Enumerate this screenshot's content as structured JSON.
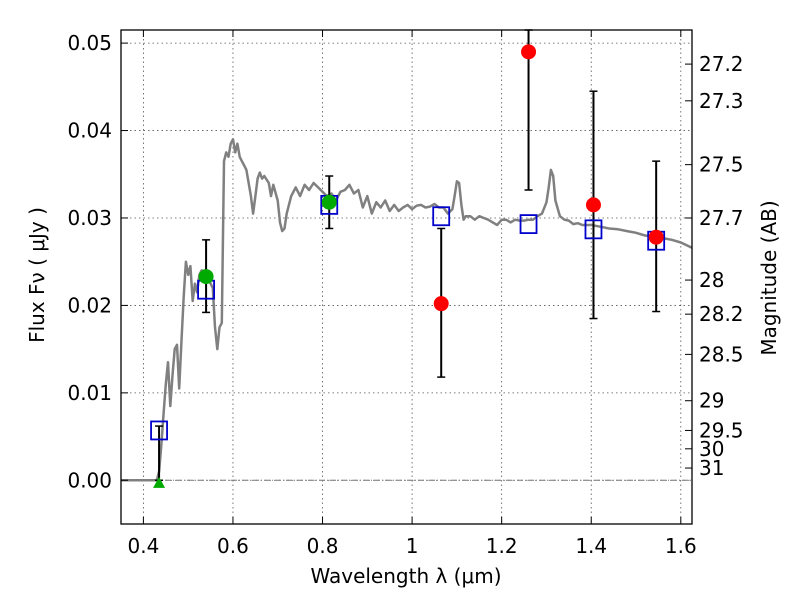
{
  "chart_data": {
    "type": "scatter",
    "title": "",
    "xlabel": "Wavelength  λ (μm)",
    "ylabel": "Flux  Fν  ( μJy )",
    "y2label": "Magnitude (AB)",
    "xlim": [
      0.35,
      1.625
    ],
    "ylim": [
      -0.005,
      0.0515
    ],
    "grid": true,
    "x_ticks": [
      0.4,
      0.6,
      0.8,
      1.0,
      1.2,
      1.4,
      1.6
    ],
    "x_tick_labels": [
      "0.4",
      "0.6",
      "0.8",
      "1",
      "1.2",
      "1.4",
      "1.6"
    ],
    "y_ticks": [
      0.0,
      0.01,
      0.02,
      0.03,
      0.04,
      0.05
    ],
    "y_tick_labels": [
      "0.00",
      "0.01",
      "0.02",
      "0.03",
      "0.04",
      "0.05"
    ],
    "right_axis_ticks": [
      {
        "label": "27.2",
        "flux": 0.0476
      },
      {
        "label": "27.3",
        "flux": 0.0434
      },
      {
        "label": "27.5",
        "flux": 0.0361
      },
      {
        "label": "27.7",
        "flux": 0.03
      },
      {
        "label": "28",
        "flux": 0.0229
      },
      {
        "label": "28.2",
        "flux": 0.019
      },
      {
        "label": "28.5",
        "flux": 0.0144
      },
      {
        "label": "29",
        "flux": 0.0091
      },
      {
        "label": "29.5",
        "flux": 0.0057
      },
      {
        "label": "30",
        "flux": 0.0036
      },
      {
        "label": "31",
        "flux": 0.0014
      }
    ],
    "series": [
      {
        "kind": "line",
        "color": "#808080",
        "points": [
          [
            0.35,
            0.0
          ],
          [
            0.43,
            0.0
          ],
          [
            0.435,
            0.001
          ],
          [
            0.44,
            0.004
          ],
          [
            0.445,
            0.0075
          ],
          [
            0.45,
            0.011
          ],
          [
            0.455,
            0.0135
          ],
          [
            0.46,
            0.0085
          ],
          [
            0.465,
            0.012
          ],
          [
            0.47,
            0.015
          ],
          [
            0.475,
            0.0155
          ],
          [
            0.48,
            0.0105
          ],
          [
            0.485,
            0.016
          ],
          [
            0.49,
            0.021
          ],
          [
            0.495,
            0.025
          ],
          [
            0.5,
            0.0235
          ],
          [
            0.505,
            0.0245
          ],
          [
            0.51,
            0.0205
          ],
          [
            0.515,
            0.0225
          ],
          [
            0.52,
            0.0215
          ],
          [
            0.525,
            0.0235
          ],
          [
            0.53,
            0.024
          ],
          [
            0.54,
            0.0238
          ],
          [
            0.55,
            0.0225
          ],
          [
            0.555,
            0.022
          ],
          [
            0.56,
            0.0175
          ],
          [
            0.565,
            0.015
          ],
          [
            0.57,
            0.0175
          ],
          [
            0.575,
            0.018
          ],
          [
            0.58,
            0.0365
          ],
          [
            0.585,
            0.0375
          ],
          [
            0.59,
            0.037
          ],
          [
            0.595,
            0.0385
          ],
          [
            0.6,
            0.039
          ],
          [
            0.605,
            0.0375
          ],
          [
            0.61,
            0.0385
          ],
          [
            0.615,
            0.037
          ],
          [
            0.62,
            0.0365
          ],
          [
            0.625,
            0.036
          ],
          [
            0.63,
            0.0355
          ],
          [
            0.64,
            0.0325
          ],
          [
            0.645,
            0.0305
          ],
          [
            0.65,
            0.0325
          ],
          [
            0.655,
            0.0345
          ],
          [
            0.66,
            0.0352
          ],
          [
            0.665,
            0.0345
          ],
          [
            0.67,
            0.0348
          ],
          [
            0.68,
            0.034
          ],
          [
            0.685,
            0.0325
          ],
          [
            0.69,
            0.0338
          ],
          [
            0.7,
            0.032
          ],
          [
            0.705,
            0.0295
          ],
          [
            0.71,
            0.0285
          ],
          [
            0.715,
            0.0288
          ],
          [
            0.72,
            0.0305
          ],
          [
            0.73,
            0.0325
          ],
          [
            0.74,
            0.0335
          ],
          [
            0.75,
            0.0325
          ],
          [
            0.76,
            0.0338
          ],
          [
            0.77,
            0.0332
          ],
          [
            0.78,
            0.034
          ],
          [
            0.79,
            0.0335
          ],
          [
            0.8,
            0.033
          ],
          [
            0.81,
            0.0325
          ],
          [
            0.82,
            0.0328
          ],
          [
            0.83,
            0.032
          ],
          [
            0.84,
            0.033
          ],
          [
            0.85,
            0.0332
          ],
          [
            0.86,
            0.0338
          ],
          [
            0.87,
            0.0328
          ],
          [
            0.88,
            0.0332
          ],
          [
            0.89,
            0.0312
          ],
          [
            0.9,
            0.0325
          ],
          [
            0.91,
            0.0305
          ],
          [
            0.92,
            0.0318
          ],
          [
            0.93,
            0.0312
          ],
          [
            0.94,
            0.032
          ],
          [
            0.95,
            0.0308
          ],
          [
            0.96,
            0.0315
          ],
          [
            0.97,
            0.0308
          ],
          [
            0.98,
            0.0312
          ],
          [
            0.99,
            0.0315
          ],
          [
            1.0,
            0.031
          ],
          [
            1.01,
            0.0314
          ],
          [
            1.02,
            0.0315
          ],
          [
            1.03,
            0.0312
          ],
          [
            1.04,
            0.0313
          ],
          [
            1.05,
            0.0316
          ],
          [
            1.06,
            0.0312
          ],
          [
            1.07,
            0.0312
          ],
          [
            1.08,
            0.0305
          ],
          [
            1.09,
            0.031
          ],
          [
            1.095,
            0.0325
          ],
          [
            1.1,
            0.0342
          ],
          [
            1.105,
            0.034
          ],
          [
            1.11,
            0.0315
          ],
          [
            1.115,
            0.0298
          ],
          [
            1.12,
            0.0302
          ],
          [
            1.13,
            0.0302
          ],
          [
            1.14,
            0.0298
          ],
          [
            1.15,
            0.0302
          ],
          [
            1.16,
            0.03
          ],
          [
            1.17,
            0.0298
          ],
          [
            1.18,
            0.0295
          ],
          [
            1.19,
            0.0292
          ],
          [
            1.2,
            0.0298
          ],
          [
            1.21,
            0.0298
          ],
          [
            1.22,
            0.0295
          ],
          [
            1.23,
            0.0298
          ],
          [
            1.24,
            0.0297
          ],
          [
            1.25,
            0.0297
          ],
          [
            1.26,
            0.0298
          ],
          [
            1.27,
            0.0298
          ],
          [
            1.28,
            0.0302
          ],
          [
            1.29,
            0.0305
          ],
          [
            1.3,
            0.0318
          ],
          [
            1.305,
            0.0335
          ],
          [
            1.31,
            0.0355
          ],
          [
            1.315,
            0.0348
          ],
          [
            1.32,
            0.032
          ],
          [
            1.33,
            0.0302
          ],
          [
            1.34,
            0.0298
          ],
          [
            1.35,
            0.0297
          ],
          [
            1.36,
            0.0293
          ],
          [
            1.37,
            0.0294
          ],
          [
            1.38,
            0.0292
          ],
          [
            1.4,
            0.0292
          ],
          [
            1.42,
            0.029
          ],
          [
            1.44,
            0.0288
          ],
          [
            1.46,
            0.0287
          ],
          [
            1.48,
            0.0285
          ],
          [
            1.5,
            0.0283
          ],
          [
            1.52,
            0.028
          ],
          [
            1.54,
            0.0279
          ],
          [
            1.56,
            0.0277
          ],
          [
            1.58,
            0.0275
          ],
          [
            1.6,
            0.0272
          ],
          [
            1.625,
            0.0266
          ]
        ]
      },
      {
        "kind": "model-squares",
        "color": "#0000cc",
        "points": [
          [
            0.435,
            0.0057
          ],
          [
            0.54,
            0.0218
          ],
          [
            0.815,
            0.0315
          ],
          [
            1.065,
            0.0302
          ],
          [
            1.26,
            0.0293
          ],
          [
            1.405,
            0.0287
          ],
          [
            1.545,
            0.0274
          ]
        ]
      },
      {
        "kind": "green-points",
        "color": "#00aa00",
        "points": [
          [
            0.54,
            0.0233,
            0.0192,
            0.0275
          ],
          [
            0.815,
            0.0318,
            0.0288,
            0.0348
          ]
        ]
      },
      {
        "kind": "red-points",
        "color": "#ff0000",
        "points": [
          [
            1.065,
            0.0202,
            0.0118,
            0.0288
          ],
          [
            1.26,
            0.049,
            0.0332,
            0.0515
          ],
          [
            1.405,
            0.0315,
            0.0185,
            0.0445
          ],
          [
            1.545,
            0.0278,
            0.0193,
            0.0365
          ]
        ]
      },
      {
        "kind": "green-triangle",
        "color": "#00aa00",
        "points": [
          [
            0.435,
            -0.0003,
            0.0,
            0.0062
          ]
        ]
      }
    ]
  }
}
